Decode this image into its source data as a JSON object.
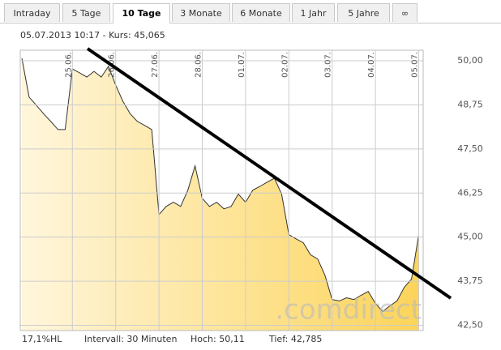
{
  "tabs": [
    "Intraday",
    "5 Tage",
    "10 Tage",
    "3 Monate",
    "6 Monate",
    "1 Jahr",
    "5 Jahre",
    "∞"
  ],
  "header": "05.07.2013 10:17 - Kurs: 45,065",
  "footer": [
    "17,1%HL",
    "Intervall: 30 Minuten",
    "Hoch: 50,11",
    "Tief: 42,785"
  ],
  "chart_data": {
    "type": "area",
    "watermark": ".comdirect",
    "categories": [
      null,
      null,
      null,
      null,
      null,
      null,
      null,
      "25.06.",
      null,
      null,
      null,
      null,
      null,
      "26.06.",
      null,
      null,
      null,
      null,
      null,
      "27.06.",
      null,
      null,
      null,
      null,
      null,
      "28.06.",
      null,
      null,
      null,
      null,
      null,
      "01.07.",
      null,
      null,
      null,
      null,
      null,
      "02.07.",
      null,
      null,
      null,
      null,
      null,
      "03.07.",
      null,
      null,
      null,
      null,
      null,
      "04.07.",
      null,
      null,
      null,
      null,
      null,
      "05.07."
    ],
    "series": [
      {
        "name": "Kurs",
        "color": "#333333",
        "values": [
          50.07,
          48.97,
          48.74,
          48.5,
          48.28,
          48.05,
          48.05,
          49.77,
          49.66,
          49.54,
          49.7,
          49.54,
          49.84,
          49.31,
          48.85,
          48.5,
          48.28,
          48.17,
          48.05,
          45.64,
          45.87,
          45.99,
          45.87,
          46.33,
          47.02,
          46.1,
          45.87,
          45.99,
          45.8,
          45.87,
          46.22,
          45.99,
          46.33,
          46.44,
          46.56,
          46.67,
          46.22,
          45.07,
          44.95,
          44.84,
          44.5,
          44.38,
          43.92,
          43.23,
          43.19,
          43.28,
          43.23,
          43.35,
          43.46,
          43.12,
          42.89,
          43.05,
          43.19,
          43.58,
          43.81,
          45.065
        ]
      }
    ],
    "ylim": [
      42.35,
      50.3
    ],
    "yticks": [
      {
        "value": 42.5,
        "label": "42,50"
      },
      {
        "value": 43.75,
        "label": "43,75"
      },
      {
        "value": 45,
        "label": "45,00"
      },
      {
        "value": 46.25,
        "label": "46,25"
      },
      {
        "value": 47.5,
        "label": "47,50"
      },
      {
        "value": 48.75,
        "label": "48,75"
      },
      {
        "value": 50,
        "label": "50,00"
      }
    ],
    "grid": true
  }
}
